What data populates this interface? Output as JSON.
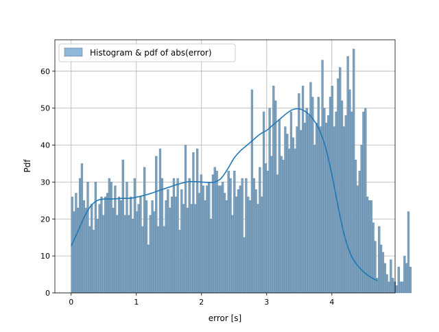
{
  "chart_data": {
    "type": "bar",
    "xlabel": "error [s]",
    "ylabel": "Pdf",
    "xlim": [
      -0.25,
      4.97
    ],
    "ylim": [
      0,
      68.5
    ],
    "x_ticks": [
      0,
      1,
      2,
      3,
      4
    ],
    "y_ticks": [
      0,
      10,
      20,
      30,
      40,
      50,
      60
    ],
    "grid": true,
    "legend": {
      "placement": "top-left",
      "entries": [
        "Histogram & pdf of abs(error)"
      ]
    },
    "colors": {
      "bar_fill": "#7aa1bf",
      "bar_edge": "#5f7f99",
      "curve": "#1f77b4",
      "grid": "#b0b0b0",
      "legend_patch": "#8fb7d9"
    },
    "histogram": {
      "x_start": 0.0,
      "bin_width": 0.03,
      "values": [
        26,
        22,
        27,
        23,
        31,
        35,
        25,
        23,
        30,
        18,
        24,
        17,
        30,
        20,
        24,
        26,
        21,
        26,
        27,
        31,
        30,
        23,
        29,
        21,
        26,
        25,
        36,
        21,
        30,
        21,
        26,
        20,
        31,
        22,
        24,
        26,
        18,
        34,
        25,
        13,
        21,
        25,
        22,
        37,
        18,
        39,
        31,
        18,
        25,
        28,
        23,
        26,
        31,
        26,
        31,
        17,
        28,
        24,
        40,
        23,
        31,
        24,
        38,
        24,
        39,
        27,
        32,
        29,
        25,
        29,
        30,
        20,
        32,
        34,
        33,
        29,
        29,
        30,
        27,
        25,
        33,
        31,
        21,
        33,
        26,
        28,
        29,
        31,
        15,
        31,
        26,
        25,
        55,
        31,
        28,
        24,
        34,
        26,
        49,
        35,
        33,
        50,
        37,
        56,
        52,
        32,
        47,
        37,
        36,
        45,
        43,
        39,
        49,
        42,
        39,
        45,
        54,
        44,
        56,
        46,
        50,
        48,
        57,
        53,
        40,
        46,
        53,
        45,
        63,
        50,
        46,
        48,
        53,
        56,
        45,
        49,
        58,
        61,
        52,
        45,
        48,
        64,
        55,
        49,
        66,
        36,
        29,
        33,
        40,
        49,
        50,
        26,
        25,
        25,
        19,
        14,
        4,
        18,
        13,
        11,
        8,
        5,
        3,
        9,
        4,
        3,
        2,
        7,
        3,
        3,
        10,
        8,
        22,
        7
      ]
    },
    "kde": {
      "x": [
        0.0,
        0.1,
        0.2,
        0.3,
        0.4,
        0.5,
        0.6,
        0.7,
        0.8,
        0.9,
        1.0,
        1.1,
        1.2,
        1.3,
        1.4,
        1.5,
        1.6,
        1.7,
        1.8,
        1.9,
        2.0,
        2.1,
        2.2,
        2.3,
        2.4,
        2.5,
        2.6,
        2.7,
        2.8,
        2.9,
        3.0,
        3.1,
        3.2,
        3.3,
        3.4,
        3.5,
        3.6,
        3.7,
        3.8,
        3.9,
        4.0,
        4.1,
        4.2,
        4.3,
        4.4,
        4.5,
        4.6,
        4.7
      ],
      "y": [
        12.7,
        16.5,
        20.5,
        23.5,
        25.0,
        25.4,
        25.4,
        25.5,
        25.6,
        25.6,
        25.9,
        26.3,
        26.8,
        27.4,
        28.0,
        28.6,
        29.2,
        29.7,
        30.1,
        30.1,
        30.0,
        29.9,
        30.0,
        31.0,
        33.5,
        36.5,
        38.5,
        40.0,
        41.5,
        43.0,
        44.0,
        45.5,
        47.0,
        48.5,
        49.6,
        49.8,
        49.0,
        47.3,
        44.4,
        39.6,
        32.0,
        23.0,
        15.0,
        10.0,
        7.3,
        5.5,
        4.2,
        3.3
      ]
    }
  }
}
